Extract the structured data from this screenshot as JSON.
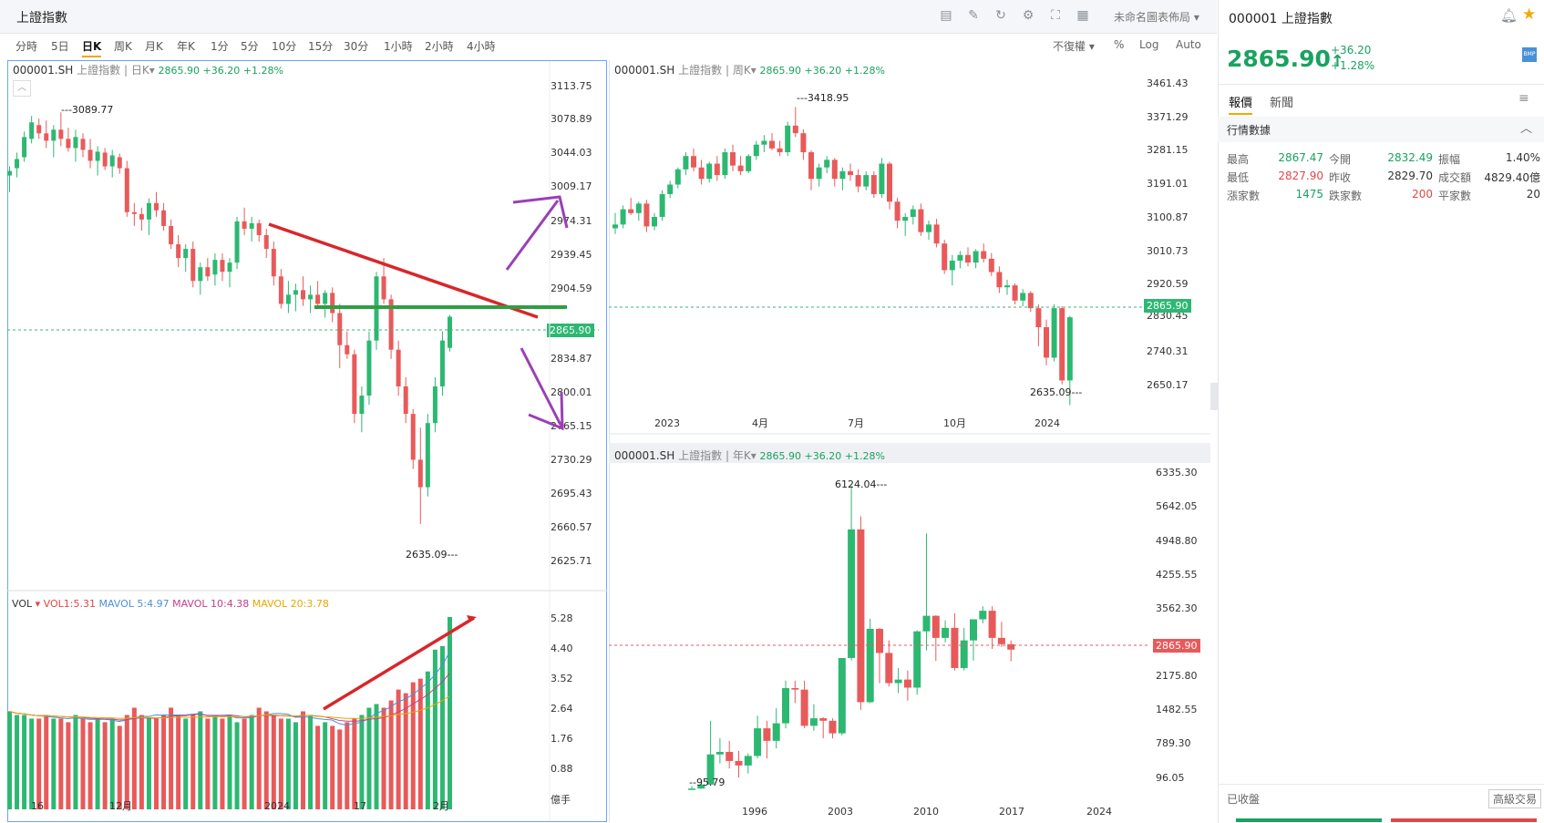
{
  "app": {
    "title": "上證指數",
    "layout_name": "未命名圖表佈局",
    "timeframes": [
      "分時",
      "5日",
      "日K",
      "周K",
      "月K",
      "年K",
      "1分",
      "5分",
      "10分",
      "15分",
      "30分",
      "1小時",
      "2小時",
      "4小時"
    ],
    "active_timeframe": "日K",
    "right_tools": [
      "不復權",
      "%",
      "Log",
      "Auto"
    ]
  },
  "panels": {
    "daily": {
      "symbol": "000001.SH",
      "name": "上證指數",
      "period": "日K",
      "quote": "2865.90 +36.20 +1.28%",
      "yticks": [
        "3113.75",
        "3078.89",
        "3044.03",
        "3009.17",
        "2974.31",
        "2939.45",
        "2904.59",
        "2865.90",
        "2834.87",
        "2800.01",
        "2765.15",
        "2730.29",
        "2695.43",
        "2660.57",
        "2625.71"
      ],
      "high_label": "3089.77",
      "low_label": "2635.09",
      "current": "2865.90",
      "xticks": [
        "16",
        "12月",
        "2024",
        "17",
        "2月"
      ]
    },
    "volume": {
      "label": "VOL",
      "vol1": "VOL1:5.31",
      "mavol5": "MAVOL 5:4.97",
      "mavol10": "MAVOL 10:4.38",
      "mavol20": "MAVOL 20:3.78",
      "yticks": [
        "5.28",
        "4.40",
        "3.52",
        "2.64",
        "1.76",
        "0.88"
      ],
      "unit": "億手"
    },
    "weekly": {
      "symbol": "000001.SH",
      "name": "上證指數",
      "period": "周K",
      "quote": "2865.90 +36.20 +1.28%",
      "yticks": [
        "3461.43",
        "3371.29",
        "3281.15",
        "3191.01",
        "3100.87",
        "3010.73",
        "2920.59",
        "2830.45",
        "2740.31",
        "2650.17"
      ],
      "high_label": "3418.95",
      "low_label": "2635.09",
      "current": "2865.90",
      "xticks": [
        "2023",
        "4月",
        "7月",
        "10月",
        "2024"
      ]
    },
    "yearly": {
      "symbol": "000001.SH",
      "name": "上證指數",
      "period": "年K",
      "quote": "2865.90 +36.20 +1.28%",
      "yticks": [
        "6335.30",
        "5642.05",
        "4948.80",
        "4255.55",
        "3562.30",
        "2865.90",
        "2175.80",
        "1482.55",
        "789.30",
        "96.05"
      ],
      "high_label": "6124.04",
      "low_label": "95.79",
      "current": "2865.90",
      "xticks": [
        "1996",
        "2003",
        "2010",
        "2017",
        "2024"
      ]
    }
  },
  "sidebar": {
    "symbol": "000001 上證指數",
    "price": "2865.90",
    "arrow": "↑",
    "change": "+36.20",
    "change_pct": "+1.28%",
    "badge": "BMP",
    "tabs": [
      "報價",
      "新聞"
    ],
    "section": "行情數據",
    "stats": [
      [
        {
          "k": "最高",
          "v": "2867.47",
          "c": "#1aa260"
        },
        {
          "k": "今開",
          "v": "2832.49",
          "c": "#1aa260"
        },
        {
          "k": "振幅",
          "v": "1.40%",
          "c": "#333"
        }
      ],
      [
        {
          "k": "最低",
          "v": "2827.90",
          "c": "#e04848"
        },
        {
          "k": "昨收",
          "v": "2829.70",
          "c": "#333"
        },
        {
          "k": "成交額",
          "v": "4829.40億",
          "c": "#333"
        }
      ],
      [
        {
          "k": "漲家數",
          "v": "1475",
          "c": "#1aa260"
        },
        {
          "k": "跌家數",
          "v": "200",
          "c": "#e04848"
        },
        {
          "k": "平家數",
          "v": "20",
          "c": "#333"
        }
      ]
    ],
    "status": "已收盤",
    "advanced": "高級交易"
  }
}
